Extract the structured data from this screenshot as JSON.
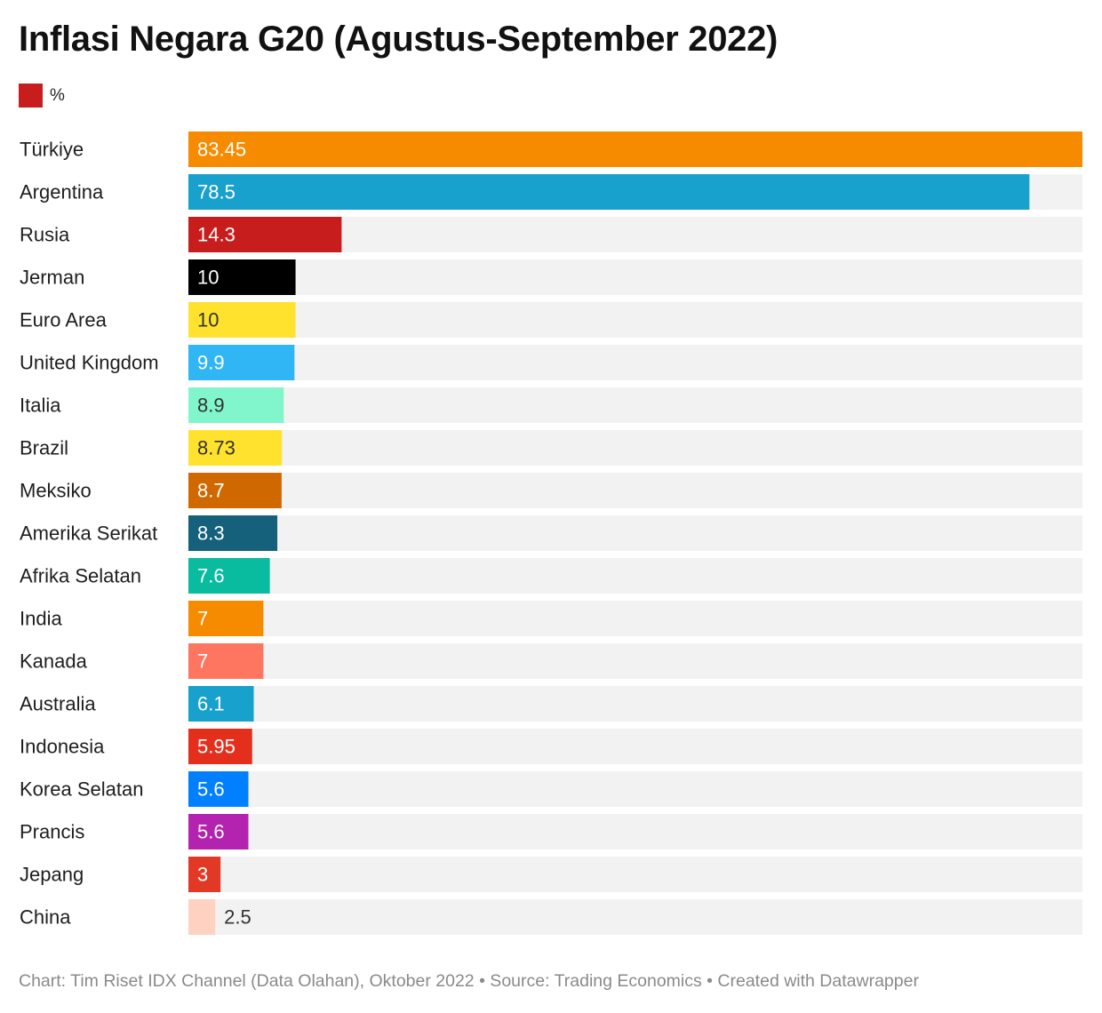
{
  "title": "Inflasi Negara G20 (Agustus-September 2022)",
  "legend": {
    "label": "%",
    "color": "#c71e1d"
  },
  "footer": {
    "text": "Chart: Tim Riset IDX Channel (Data Olahan), Oktober 2022 • Source: Trading Economics • Created with Datawrapper"
  },
  "colors": {
    "track": "#f2f2f2"
  },
  "chart_data": {
    "type": "bar",
    "orientation": "horizontal",
    "title": "Inflasi Negara G20 (Agustus-September 2022)",
    "xlim": [
      0,
      83.45
    ],
    "grid": false,
    "legend": "top-left",
    "categories": [
      "Türkiye",
      "Argentina",
      "Rusia",
      "Jerman",
      "Euro Area",
      "United Kingdom",
      "Italia",
      "Brazil",
      "Meksiko",
      "Amerika Serikat",
      "Afrika Selatan",
      "India",
      "Kanada",
      "Australia",
      "Indonesia",
      "Korea Selatan",
      "Prancis",
      "Jepang",
      "China"
    ],
    "values": [
      83.45,
      78.5,
      14.3,
      10,
      10,
      9.9,
      8.9,
      8.73,
      8.7,
      8.3,
      7.6,
      7,
      7,
      6.1,
      5.95,
      5.6,
      5.6,
      3,
      2.5
    ],
    "value_labels": [
      "83.45",
      "78.5",
      "14.3",
      "10",
      "10",
      "9.9",
      "8.9",
      "8.73",
      "8.7",
      "8.3",
      "7.6",
      "7",
      "7",
      "6.1",
      "5.95",
      "5.6",
      "5.6",
      "3",
      "2.5"
    ],
    "bar_colors": [
      "#f68b00",
      "#18a1cd",
      "#c71e1d",
      "#000000",
      "#ffe22e",
      "#30b6f5",
      "#81f5cb",
      "#ffe22e",
      "#d06800",
      "#15607a",
      "#09bb9f",
      "#f68b00",
      "#fe7660",
      "#18a1cd",
      "#e42f1d",
      "#0080ff",
      "#b422b0",
      "#e23927",
      "#ffd1c0"
    ],
    "label_colors": [
      "#ffffff",
      "#ffffff",
      "#ffffff",
      "#ffffff",
      "#333333",
      "#ffffff",
      "#333333",
      "#333333",
      "#ffffff",
      "#ffffff",
      "#ffffff",
      "#ffffff",
      "#ffffff",
      "#ffffff",
      "#ffffff",
      "#ffffff",
      "#ffffff",
      "#ffffff",
      "#333333"
    ],
    "label_inside": [
      true,
      true,
      true,
      true,
      true,
      true,
      true,
      true,
      true,
      true,
      true,
      true,
      true,
      true,
      true,
      true,
      true,
      true,
      false
    ]
  }
}
